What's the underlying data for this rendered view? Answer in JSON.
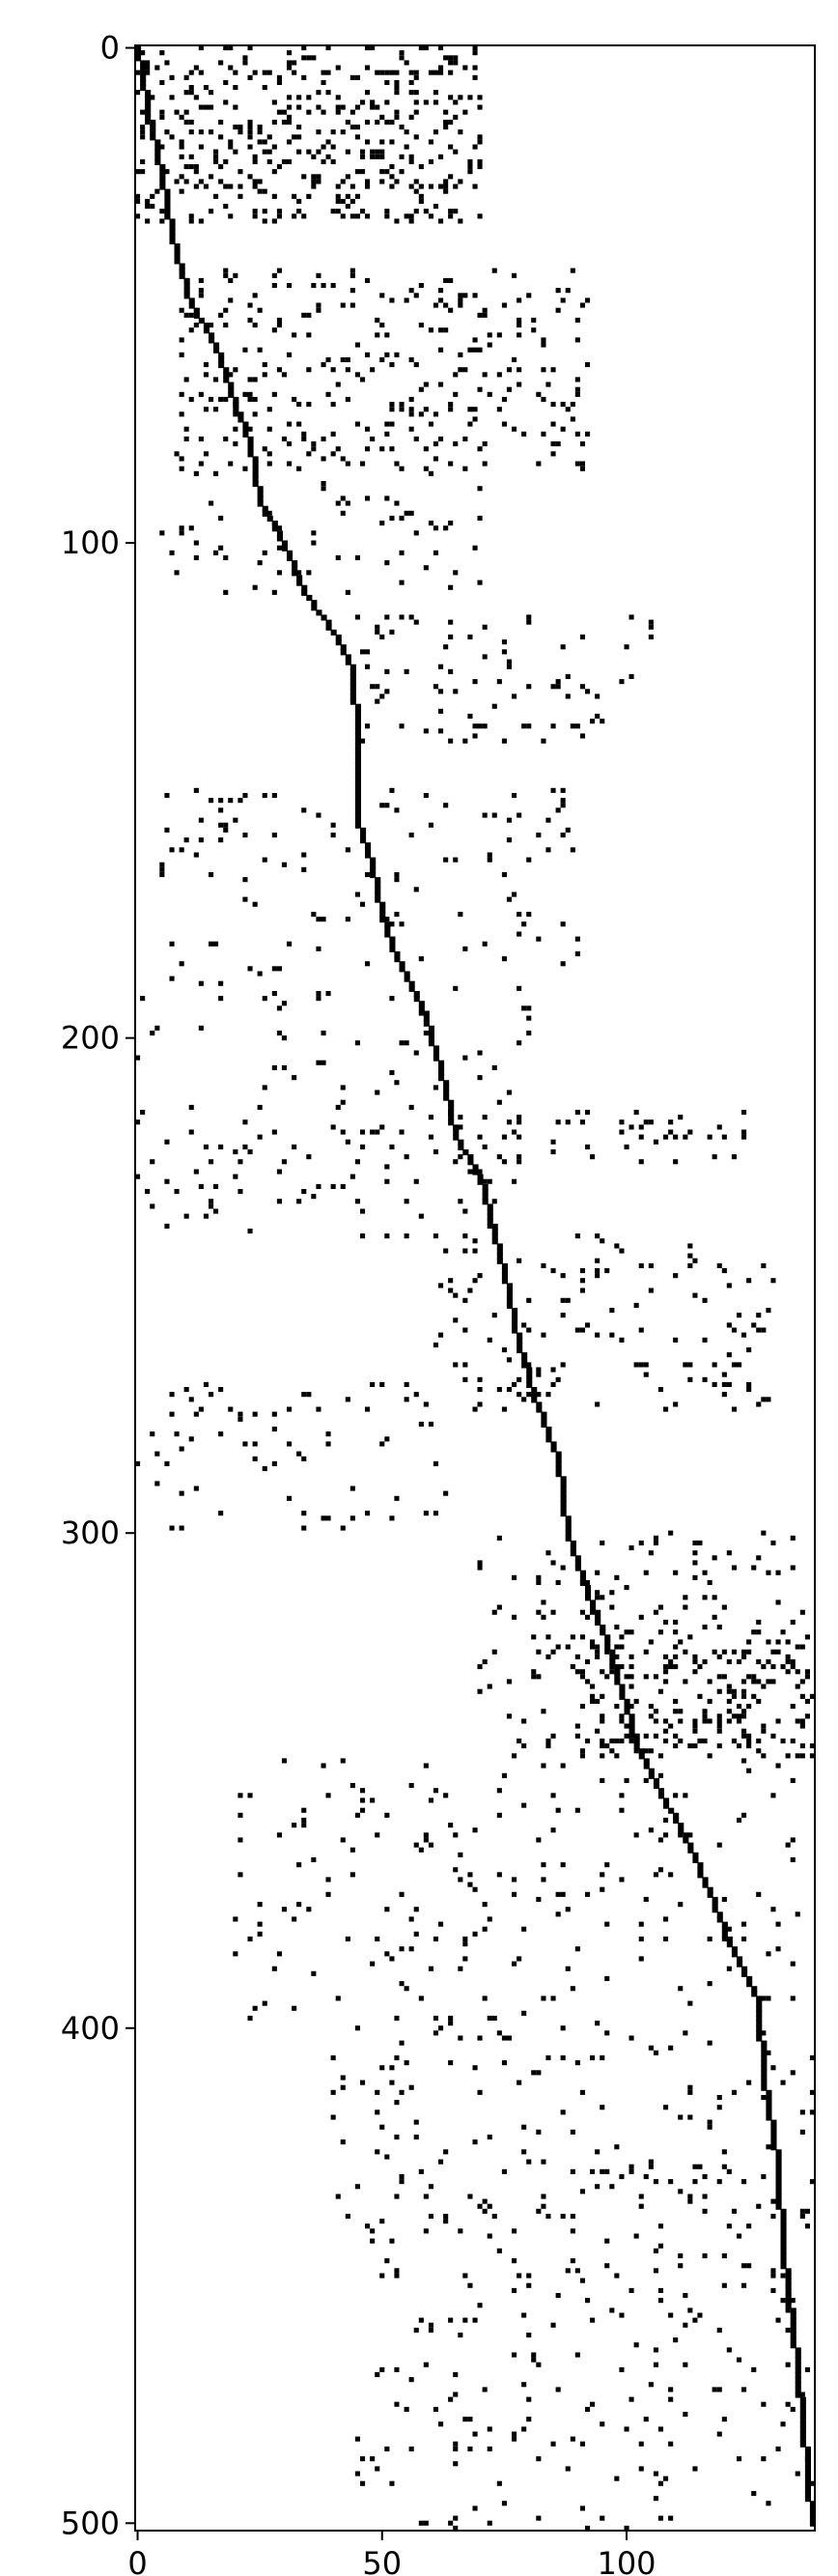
{
  "chart_data": {
    "type": "heatmap",
    "title": "",
    "xlabel": "",
    "ylabel": "",
    "colormap": "binary",
    "values": [
      0,
      1
    ],
    "colors": {
      "zero": "#ffffff",
      "nonzero": "#000000",
      "axis": "#000000"
    },
    "grid": false,
    "rows": 502,
    "cols": 139,
    "xlim": [
      -0.5,
      138.5
    ],
    "ylim": [
      501.5,
      -0.5
    ],
    "x_ticks": [
      0,
      50,
      100
    ],
    "x_tick_labels": [
      "0",
      "50",
      "100"
    ],
    "y_ticks": [
      0,
      100,
      200,
      300,
      400,
      500
    ],
    "y_tick_labels": [
      "0",
      "100",
      "200",
      "300",
      "400",
      "500"
    ],
    "diagonal_path": [
      [
        0,
        0
      ],
      [
        12,
        2
      ],
      [
        26,
        5
      ],
      [
        38,
        7
      ],
      [
        52,
        11
      ],
      [
        60,
        16
      ],
      [
        72,
        20
      ],
      [
        80,
        23
      ],
      [
        92,
        25
      ],
      [
        100,
        30
      ],
      [
        110,
        34
      ],
      [
        118,
        40
      ],
      [
        126,
        44
      ],
      [
        140,
        45
      ],
      [
        156,
        45
      ],
      [
        165,
        48
      ],
      [
        175,
        50
      ],
      [
        184,
        53
      ],
      [
        196,
        59
      ],
      [
        210,
        63
      ],
      [
        220,
        65
      ],
      [
        228,
        70
      ],
      [
        240,
        73
      ],
      [
        252,
        76
      ],
      [
        262,
        78
      ],
      [
        272,
        81
      ],
      [
        285,
        86
      ],
      [
        300,
        88
      ],
      [
        312,
        92
      ],
      [
        322,
        96
      ],
      [
        332,
        99
      ],
      [
        345,
        103
      ],
      [
        356,
        109
      ],
      [
        368,
        115
      ],
      [
        380,
        120
      ],
      [
        395,
        127
      ],
      [
        410,
        128
      ],
      [
        428,
        131
      ],
      [
        445,
        132
      ],
      [
        460,
        134
      ],
      [
        470,
        135
      ],
      [
        480,
        136
      ],
      [
        490,
        137
      ],
      [
        501,
        138
      ]
    ],
    "clusters": [
      {
        "row_range": [
          0,
          35
        ],
        "col_range": [
          0,
          70
        ],
        "density": 0.28
      },
      {
        "row_range": [
          45,
          85
        ],
        "col_range": [
          8,
          92
        ],
        "density": 0.14
      },
      {
        "row_range": [
          85,
          110
        ],
        "col_range": [
          5,
          70
        ],
        "density": 0.07
      },
      {
        "row_range": [
          115,
          140
        ],
        "col_range": [
          45,
          105
        ],
        "density": 0.08
      },
      {
        "row_range": [
          150,
          185
        ],
        "col_range": [
          5,
          90
        ],
        "density": 0.06
      },
      {
        "row_range": [
          185,
          240
        ],
        "col_range": [
          0,
          80
        ],
        "density": 0.05
      },
      {
        "row_range": [
          215,
          225
        ],
        "col_range": [
          60,
          125
        ],
        "density": 0.12
      },
      {
        "row_range": [
          240,
          275
        ],
        "col_range": [
          60,
          130
        ],
        "density": 0.08
      },
      {
        "row_range": [
          270,
          300
        ],
        "col_range": [
          0,
          65
        ],
        "density": 0.06
      },
      {
        "row_range": [
          300,
          345
        ],
        "col_range": [
          70,
          138
        ],
        "density": 0.1
      },
      {
        "row_range": [
          320,
          345
        ],
        "col_range": [
          90,
          138
        ],
        "density": 0.22
      },
      {
        "row_range": [
          345,
          400
        ],
        "col_range": [
          20,
          135
        ],
        "density": 0.05
      },
      {
        "row_range": [
          400,
          450
        ],
        "col_range": [
          40,
          138
        ],
        "density": 0.06
      },
      {
        "row_range": [
          450,
          501
        ],
        "col_range": [
          45,
          138
        ],
        "density": 0.05
      }
    ]
  }
}
